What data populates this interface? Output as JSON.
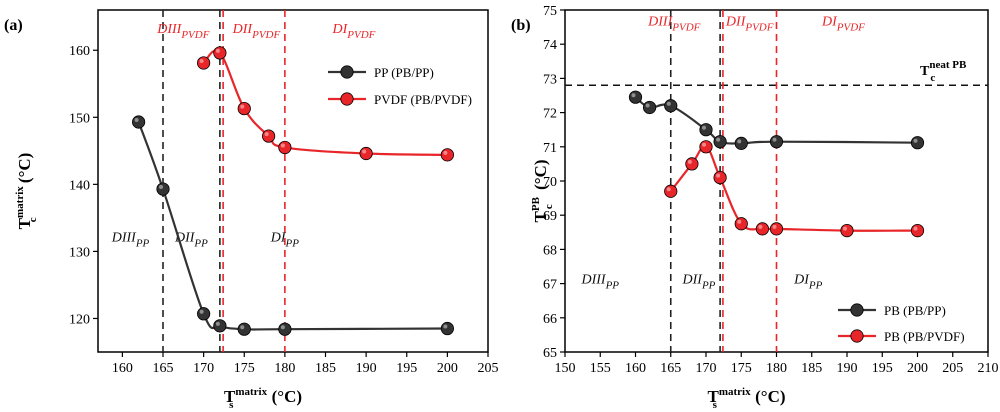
{
  "colors": {
    "gray_series": "#333333",
    "red_series": "#e8262a",
    "gray_dash": "#222222",
    "red_dash": "#e8262a"
  },
  "chart_data": [
    {
      "type": "line",
      "panel_label": "(a)",
      "xlabel_main": "T",
      "xlabel_sub": "s",
      "xlabel_sup": "matrix",
      "xlabel_unit": "(°C)",
      "ylabel_main": "T",
      "ylabel_sub": "c",
      "ylabel_sup": "matrix",
      "ylabel_unit": "(°C)",
      "xlim": [
        157,
        205
      ],
      "ylim": [
        115,
        166
      ],
      "xticks": [
        160,
        165,
        170,
        175,
        180,
        185,
        190,
        195,
        200,
        205
      ],
      "yticks": [
        120,
        130,
        140,
        150,
        160
      ],
      "legend_position": "top-right",
      "series": [
        {
          "name": "PP (PB/PP)",
          "color": "#333333",
          "x": [
            162,
            165,
            170,
            172,
            175,
            180,
            200
          ],
          "y": [
            149.3,
            139.3,
            120.7,
            118.9,
            118.4,
            118.4,
            118.5
          ]
        },
        {
          "name": "PVDF (PB/PVDF)",
          "color": "#e8262a",
          "x": [
            170,
            172,
            175,
            178,
            180,
            190,
            200
          ],
          "y": [
            158.1,
            159.6,
            151.3,
            147.2,
            145.5,
            144.6,
            144.4
          ]
        }
      ],
      "vlines": [
        {
          "x": 165,
          "color": "#222222"
        },
        {
          "x": 172,
          "color": "#222222"
        },
        {
          "x": 172.4,
          "color": "#e8262a"
        },
        {
          "x": 180,
          "color": "#e8262a"
        }
      ],
      "region_labels": [
        {
          "base": "DIII",
          "sub": "PVDF",
          "color": "#e8262a",
          "x": 167.5,
          "y": 162.6
        },
        {
          "base": "DII",
          "sub": "PVDF",
          "color": "#e8262a",
          "x": 176.5,
          "y": 162.6
        },
        {
          "base": "DI",
          "sub": "PVDF",
          "color": "#e8262a",
          "x": 188.5,
          "y": 162.6
        },
        {
          "base": "DIII",
          "sub": "PP",
          "color": "#111111",
          "x": 161,
          "y": 131.5
        },
        {
          "base": "DII",
          "sub": "PP",
          "color": "#111111",
          "x": 168.5,
          "y": 131.5
        },
        {
          "base": "DI",
          "sub": "PP",
          "color": "#111111",
          "x": 180,
          "y": 131.5
        }
      ]
    },
    {
      "type": "line",
      "panel_label": "(b)",
      "xlabel_main": "T",
      "xlabel_sub": "s",
      "xlabel_sup": "matrix",
      "xlabel_unit": "(°C)",
      "ylabel_main": "T",
      "ylabel_sub": "c",
      "ylabel_sup": "PB",
      "ylabel_unit": "(°C)",
      "xlim": [
        150,
        210
      ],
      "ylim": [
        65,
        75
      ],
      "xticks": [
        150,
        155,
        160,
        165,
        170,
        175,
        180,
        185,
        190,
        195,
        200,
        205,
        210
      ],
      "yticks": [
        65,
        66,
        67,
        68,
        69,
        70,
        71,
        72,
        73,
        74,
        75
      ],
      "legend_position": "bottom-right",
      "reference_line": {
        "y": 72.8,
        "label_main": "T",
        "label_sub": "c",
        "label_sup": "neat PB"
      },
      "series": [
        {
          "name": "PB (PB/PP)",
          "color": "#333333",
          "x": [
            160,
            162,
            165,
            170,
            172,
            175,
            180,
            200
          ],
          "y": [
            72.45,
            72.15,
            72.2,
            71.5,
            71.15,
            71.1,
            71.15,
            71.12
          ]
        },
        {
          "name": "PB (PB/PVDF)",
          "color": "#e8262a",
          "x": [
            165,
            168,
            170,
            172,
            175,
            178,
            180,
            190,
            200
          ],
          "y": [
            69.7,
            70.5,
            71.0,
            70.1,
            68.75,
            68.6,
            68.6,
            68.55,
            68.55
          ]
        }
      ],
      "vlines": [
        {
          "x": 165,
          "color": "#222222"
        },
        {
          "x": 172,
          "color": "#222222"
        },
        {
          "x": 172.4,
          "color": "#e8262a"
        },
        {
          "x": 180,
          "color": "#e8262a"
        }
      ],
      "region_labels": [
        {
          "base": "DIII",
          "sub": "PVDF",
          "color": "#e8262a",
          "x": 165.5,
          "y": 74.55
        },
        {
          "base": "DII",
          "sub": "PVDF",
          "color": "#e8262a",
          "x": 176.2,
          "y": 74.55
        },
        {
          "base": "DI",
          "sub": "PVDF",
          "color": "#e8262a",
          "x": 189.5,
          "y": 74.55
        },
        {
          "base": "DIII",
          "sub": "PP",
          "color": "#111111",
          "x": 155,
          "y": 67.0
        },
        {
          "base": "DII",
          "sub": "PP",
          "color": "#111111",
          "x": 169,
          "y": 67.0
        },
        {
          "base": "DI",
          "sub": "PP",
          "color": "#111111",
          "x": 184.5,
          "y": 67.0
        }
      ]
    }
  ]
}
